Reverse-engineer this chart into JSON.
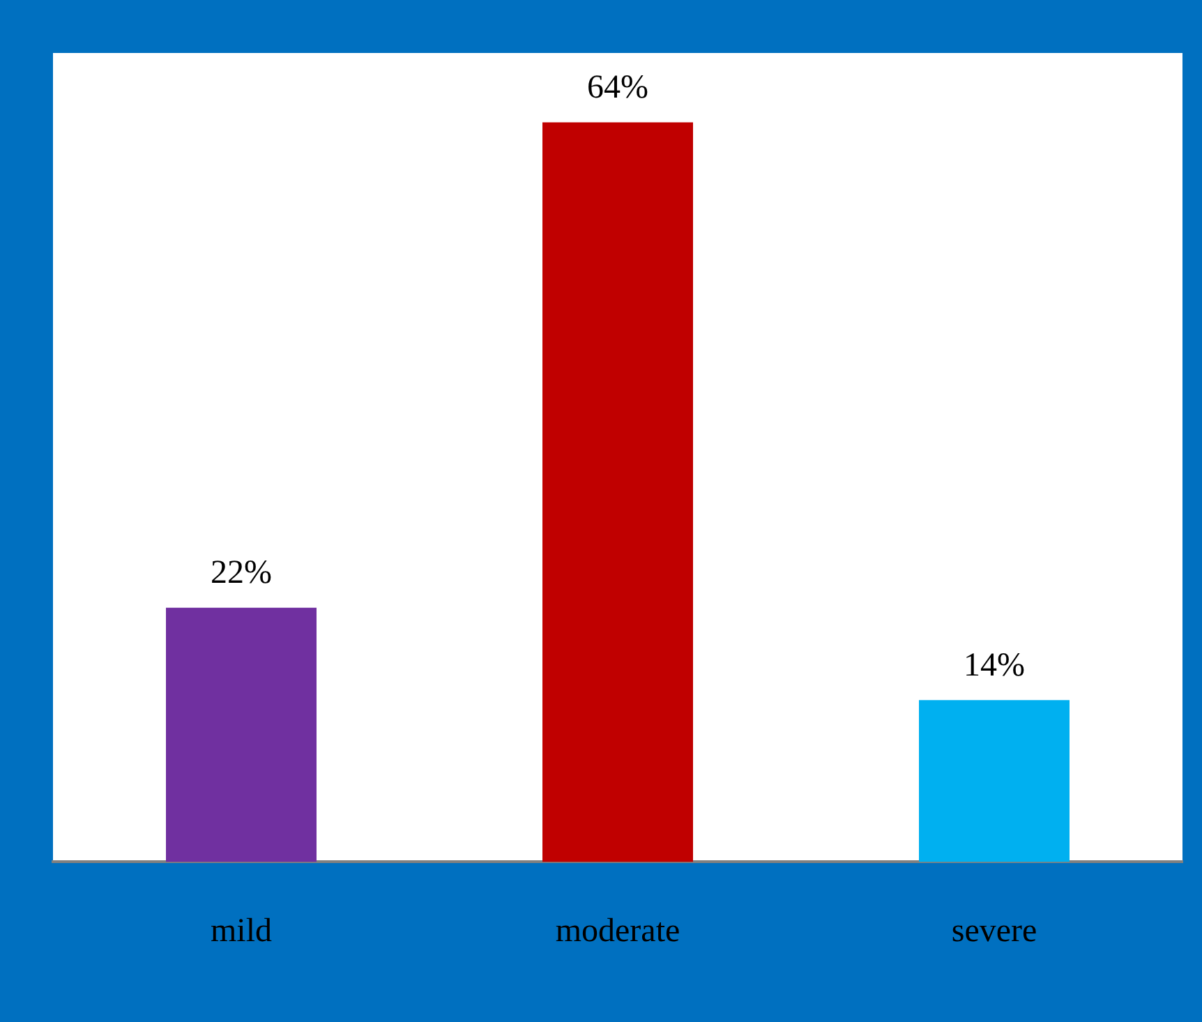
{
  "chart_data": {
    "type": "bar",
    "categories": [
      "mild",
      "moderate",
      "severe"
    ],
    "values": [
      22,
      64,
      14
    ],
    "colors": [
      "#7030a0",
      "#c00000",
      "#00b0f0"
    ],
    "value_labels": [
      "22%",
      "64%",
      "14%"
    ]
  }
}
